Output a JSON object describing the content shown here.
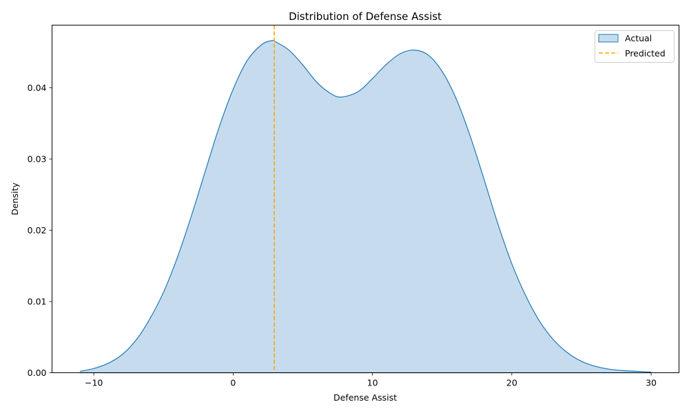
{
  "chart_data": {
    "type": "area",
    "title": "Distribution of Defense Assist",
    "xlabel": "Defense Assist",
    "ylabel": "Density",
    "xlim": [
      -13,
      32
    ],
    "ylim": [
      0,
      0.0488
    ],
    "xticks": [
      -10,
      0,
      10,
      20,
      30
    ],
    "yticks": [
      0.0,
      0.01,
      0.02,
      0.03,
      0.04
    ],
    "ytick_labels": [
      "0.00",
      "0.01",
      "0.02",
      "0.03",
      "0.04"
    ],
    "xtick_labels": [
      "−10",
      "0",
      "10",
      "20",
      "30"
    ],
    "grid": false,
    "legend_position": "top-right",
    "series": [
      {
        "name": "Actual",
        "kind": "kde-area",
        "color": "#1f77b4",
        "fill": "#c6dcee",
        "x": [
          -11,
          -10,
          -9,
          -8,
          -7,
          -6,
          -5,
          -4,
          -3,
          -2,
          -1,
          0,
          1,
          2,
          2.7,
          3,
          4,
          5,
          6,
          7,
          7.8,
          9,
          10,
          11,
          12,
          13,
          14,
          15,
          16,
          17,
          18,
          19,
          20,
          21,
          22,
          23,
          24,
          25,
          26,
          27,
          28,
          29,
          30
        ],
        "y": [
          0.0002,
          0.0006,
          0.0013,
          0.0025,
          0.0045,
          0.0075,
          0.0113,
          0.0162,
          0.022,
          0.0283,
          0.0345,
          0.0398,
          0.0438,
          0.046,
          0.0466,
          0.0465,
          0.0453,
          0.0432,
          0.0408,
          0.0392,
          0.0387,
          0.0395,
          0.0413,
          0.0433,
          0.0448,
          0.0453,
          0.0446,
          0.0423,
          0.0385,
          0.0333,
          0.0272,
          0.0209,
          0.0153,
          0.0108,
          0.0072,
          0.0046,
          0.0028,
          0.0016,
          0.0009,
          0.0005,
          0.0003,
          0.0002,
          0.0001
        ]
      },
      {
        "name": "Predicted",
        "kind": "vline",
        "color": "#ffa500",
        "x": 2.95
      }
    ]
  }
}
